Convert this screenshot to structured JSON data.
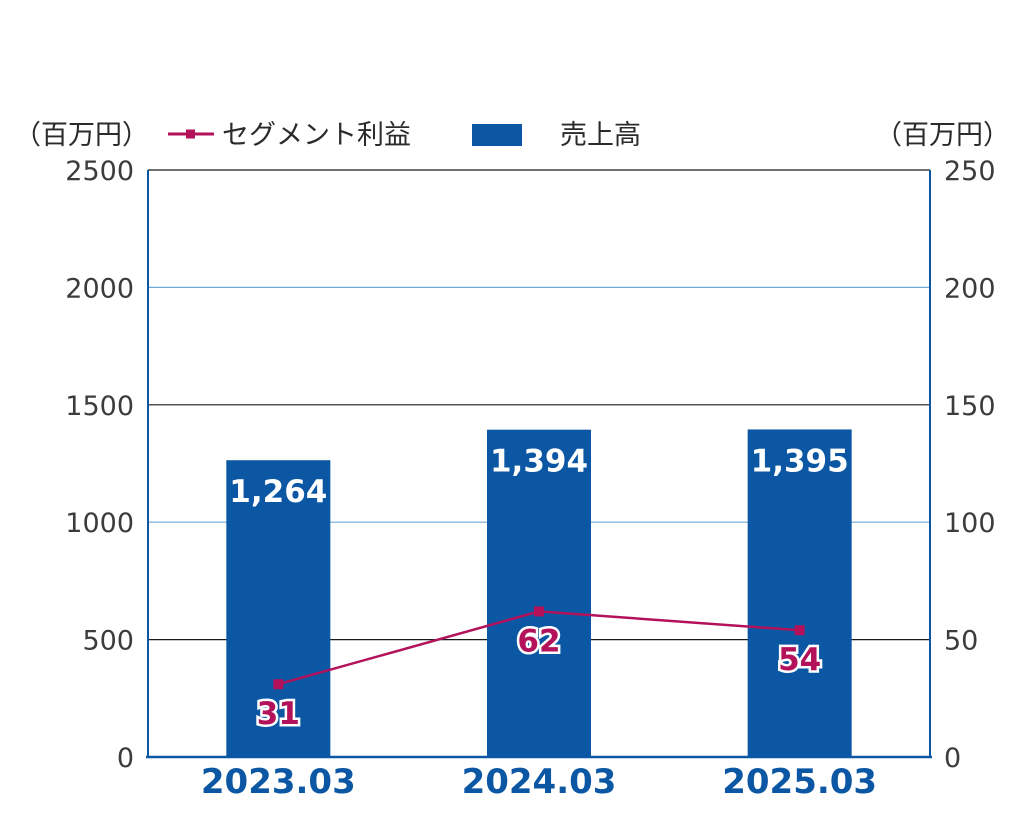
{
  "chart_data": {
    "type": "bar",
    "categories": [
      "2023.03",
      "2024.03",
      "2025.03"
    ],
    "series": [
      {
        "name": "売上高",
        "type": "bar",
        "axis": "left",
        "values": [
          1264,
          1394,
          1395
        ],
        "labels": [
          "1,264",
          "1,394",
          "1,395"
        ],
        "color": "#0b57a4"
      },
      {
        "name": "セグメント利益",
        "type": "line",
        "axis": "right",
        "values": [
          31,
          62,
          54
        ],
        "labels": [
          "31",
          "62",
          "54"
        ],
        "color": "#b3125b"
      }
    ],
    "y_left": {
      "unit": "（百万円）",
      "ylim": [
        0,
        2500
      ],
      "ticks": [
        "0",
        "500",
        "1000",
        "1500",
        "2000",
        "2500"
      ]
    },
    "y_right": {
      "unit": "（百万円）",
      "ylim": [
        0,
        250
      ],
      "ticks": [
        "0",
        "50",
        "100",
        "150",
        "200",
        "250"
      ]
    },
    "grid": true,
    "legend_position": "top",
    "colors": {
      "axis": "#0b57a4",
      "grid_light": "#6fa9d6",
      "grid_dark": "#1a1a1a"
    }
  }
}
